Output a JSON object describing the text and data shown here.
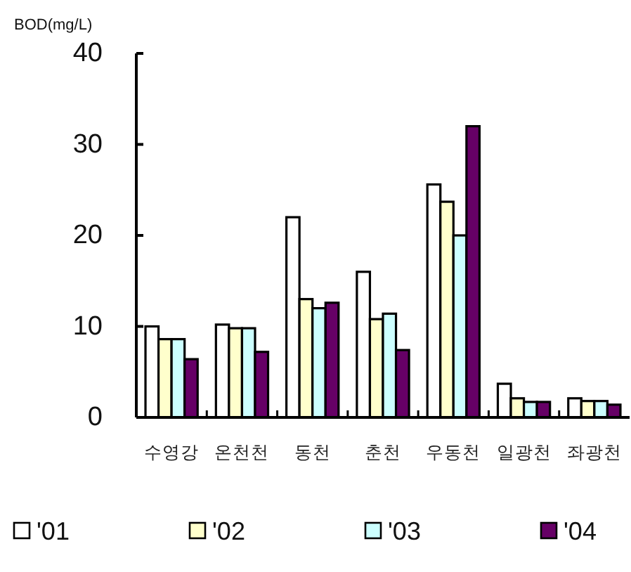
{
  "chart_data": {
    "type": "bar",
    "ylabel": "BOD(mg/L)",
    "categories": [
      "수영강",
      "온천천",
      "동천",
      "춘천",
      "우동천",
      "일광천",
      "좌광천"
    ],
    "series": [
      {
        "name": "'01",
        "color": "#ffffff",
        "values": [
          10,
          10.2,
          22,
          16,
          25.6,
          3.7,
          2.1
        ]
      },
      {
        "name": "'02",
        "color": "#ffffcc",
        "values": [
          8.6,
          9.8,
          13,
          10.8,
          23.7,
          2.1,
          1.8
        ]
      },
      {
        "name": "'03",
        "color": "#ccffff",
        "values": [
          8.6,
          9.8,
          12,
          11.4,
          20,
          1.7,
          1.8
        ]
      },
      {
        "name": "'04",
        "color": "#660066",
        "values": [
          6.4,
          7.2,
          12.6,
          7.4,
          32,
          1.7,
          1.4
        ]
      }
    ],
    "ylim": [
      0,
      40
    ],
    "yticks": [
      0,
      10,
      20,
      30,
      40
    ],
    "legend": "bottom"
  }
}
